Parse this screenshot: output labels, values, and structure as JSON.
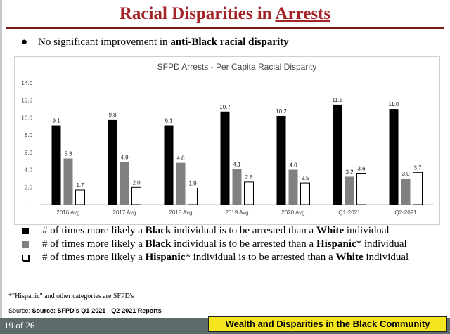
{
  "slide": {
    "title_main": "Racial Disparities in ",
    "title_underlined": "Arrests",
    "bullet_prefix": "No significant improvement in ",
    "bullet_bold": "anti-Black racial disparity",
    "bullet_glyph": "●"
  },
  "legend": [
    {
      "pre": "# of times more likely a ",
      "b1": "Black",
      "mid": " individual is to be arrested than a ",
      "b2": "White",
      "post": " individual",
      "symbol": "filled-black"
    },
    {
      "pre": "# of times more likely a ",
      "b1": "Black",
      "mid": " individual is to be arrested than a ",
      "b2": "Hispanic",
      "post": "* individual",
      "symbol": "filled-gray"
    },
    {
      "pre": "# of times more likely a ",
      "b1": "Hispanic",
      "mid": "* individual is to be arrested than a ",
      "b2": "White",
      "post": " individual",
      "symbol": "outline"
    }
  ],
  "footnote": "*\"Hispanic\" and other categories are SFPD's",
  "source": {
    "label": "Source: ",
    "text": "Source: SFPD's Q1-2021 - Q2-2021 Reports"
  },
  "page_number": "19 of 26",
  "banner": "Wealth and Disparities in the Black Community",
  "colors": {
    "title": "#a32326",
    "black_bar": "#000000",
    "gray_bar": "#808080",
    "outline_bar": "#ffffff",
    "banner": "#f5e620"
  },
  "chart_data": {
    "type": "bar",
    "title": "SFPD Arrests - Per Capita Racial Disparity",
    "categories": [
      "2016 Avg",
      "2017 Avg",
      "2018 Avg",
      "2019 Avg",
      "2020 Avg",
      "Q1-2021",
      "Q2-2021"
    ],
    "series": [
      {
        "values": [
          9.1,
          9.8,
          9.1,
          10.7,
          10.2,
          11.5,
          11.0
        ],
        "labels": [
          "9.1",
          "9.8",
          "9.1",
          "10.7",
          "10.2",
          "11.5",
          "11.0"
        ],
        "color": "#000000"
      },
      {
        "values": [
          5.3,
          4.9,
          4.8,
          4.1,
          4.0,
          3.2,
          3.0
        ],
        "labels": [
          "5.3",
          "4.9",
          "4.8",
          "4.1",
          "4.0",
          "3.2",
          "3.0"
        ],
        "color": "#808080"
      },
      {
        "values": [
          1.7,
          2.0,
          1.9,
          2.6,
          2.5,
          3.6,
          3.7
        ],
        "labels": [
          "1.7",
          "2.0",
          "1.9",
          "2.6",
          "2.5",
          "3.6",
          "3.7"
        ],
        "color": "#ffffff"
      }
    ],
    "yticks": [
      "-",
      "2.0",
      "4.0",
      "6.0",
      "8.0",
      "10.0",
      "12.0",
      "14.0"
    ],
    "ylim": [
      0,
      14
    ],
    "grid": false,
    "legend": "none"
  }
}
